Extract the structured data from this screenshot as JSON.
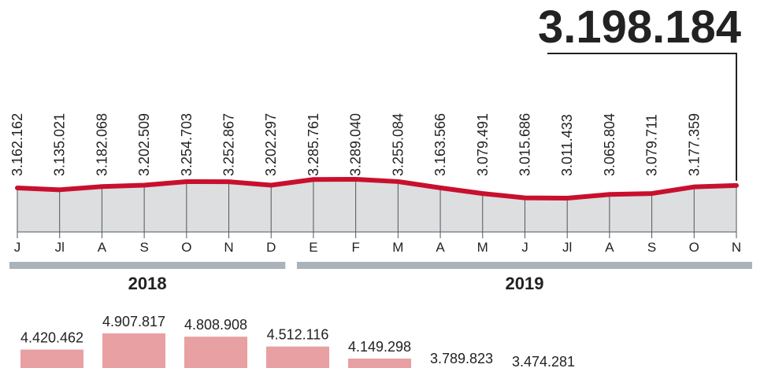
{
  "chart_data": [
    {
      "type": "line",
      "years": [
        {
          "label": "2018",
          "categories": [
            "J",
            "Jl",
            "A",
            "S",
            "O",
            "N",
            "D"
          ]
        },
        {
          "label": "2019",
          "categories": [
            "E",
            "F",
            "M",
            "A",
            "M",
            "J",
            "Jl",
            "A",
            "S",
            "O",
            "N"
          ]
        }
      ],
      "values": [
        3162162,
        3135021,
        3182068,
        3202509,
        3254703,
        3252867,
        3202297,
        3285761,
        3289040,
        3255084,
        3163566,
        3079491,
        3015686,
        3011433,
        3065804,
        3079711,
        3177359,
        3198184
      ],
      "value_labels": [
        "3.162.162",
        "3.135.021",
        "3.182.068",
        "3.202.509",
        "3.254.703",
        "3.252.867",
        "3.202.297",
        "3.285.761",
        "3.289.040",
        "3.255.084",
        "3.163.566",
        "3.079.491",
        "3.015.686",
        "3.011.433",
        "3.065.804",
        "3.079.711",
        "3.177.359",
        "3.198.184"
      ],
      "color": "#c8102e"
    },
    {
      "type": "bar",
      "values": [
        4420462,
        4907817,
        4808908,
        4512116,
        4149298,
        3789823,
        3474281
      ],
      "value_labels": [
        "4.420.462",
        "4.907.817",
        "4.808.908",
        "4.512.116",
        "4.149.298",
        "3.789.823",
        "3.474.281"
      ],
      "color": "#e8a0a3"
    }
  ]
}
